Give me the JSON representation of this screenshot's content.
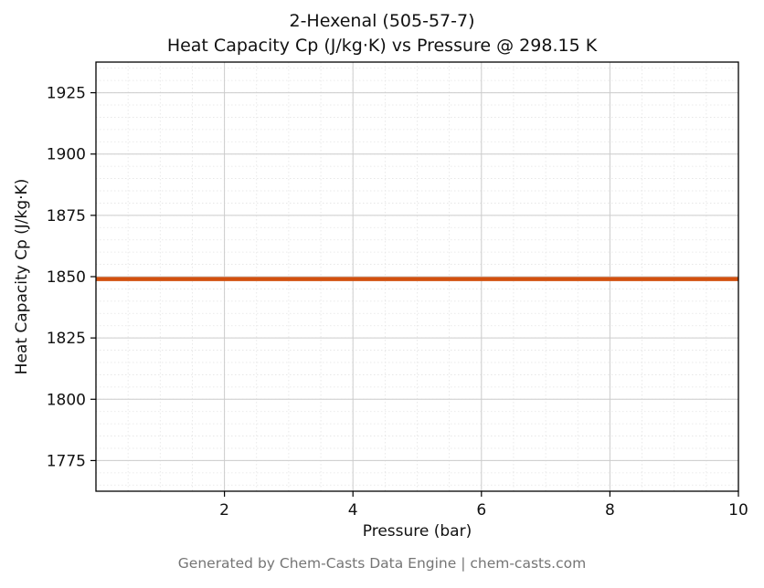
{
  "chart_data": {
    "type": "line",
    "title": "2-Hexenal (505-57-7)",
    "subtitle": "Heat Capacity Cp (J/kg·K) vs Pressure @ 298.15 K",
    "xlabel": "Pressure (bar)",
    "ylabel": "Heat Capacity Cp (J/kg·K)",
    "xlim": [
      0,
      10
    ],
    "ylim": [
      1762.5,
      1937.5
    ],
    "xticks": [
      2,
      4,
      6,
      8,
      10
    ],
    "yticks": [
      1775,
      1800,
      1825,
      1850,
      1875,
      1900,
      1925
    ],
    "x_minor_step": 0.5,
    "y_minor_step": 5,
    "grid": true,
    "legend": "none",
    "series": [
      {
        "name": "Heat Capacity Cp",
        "color": "#d2500f",
        "x": [
          0,
          10
        ],
        "y": [
          1849,
          1849
        ]
      }
    ],
    "constant_value": 1849
  },
  "footer": {
    "credit": "Generated by Chem-Casts Data Engine | chem-casts.com"
  }
}
